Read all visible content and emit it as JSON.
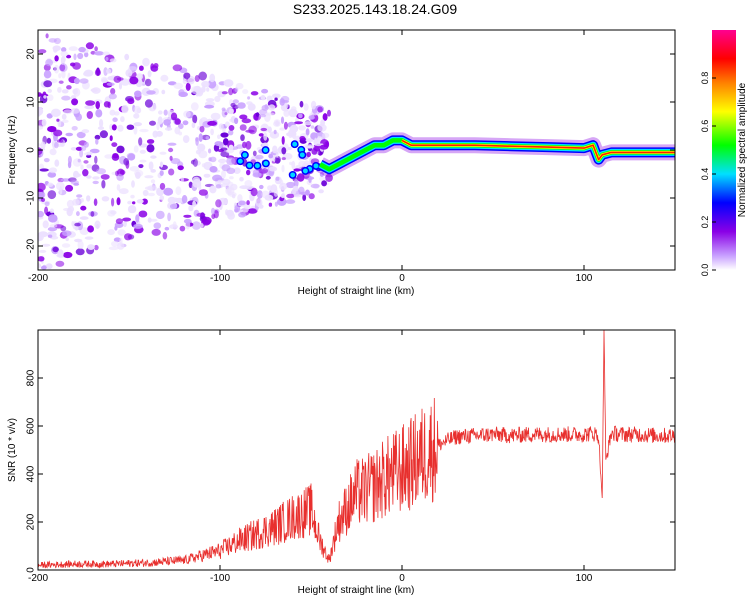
{
  "title": "S233.2025.143.18.24.G09",
  "colors": {
    "background": "#ffffff",
    "axis": "#000000",
    "snr_line": "#e8302e"
  },
  "chart_data": [
    {
      "type": "heatmap",
      "xlabel": "Height of straight line (km)",
      "ylabel": "Frequency (Hz)",
      "xlim": [
        -200,
        150
      ],
      "ylim": [
        -25,
        25
      ],
      "x_ticks": [
        -200,
        -100,
        0,
        100
      ],
      "y_ticks": [
        -20,
        -10,
        0,
        10,
        20
      ],
      "colorbar": {
        "label": "Normalized spectral amplitude",
        "range": [
          0,
          1
        ],
        "ticks": [
          0.0,
          0.2,
          0.4,
          0.6,
          0.8
        ],
        "colormap": [
          "#ffffff",
          "#c8a0ff",
          "#8a00e6",
          "#0000ff",
          "#00e0ff",
          "#00ff00",
          "#ffff00",
          "#ff8000",
          "#ff0000",
          "#ff0090"
        ]
      },
      "dominant_frequency_track": {
        "x": [
          -45,
          -40,
          -35,
          -30,
          -25,
          -20,
          -15,
          -10,
          -5,
          0,
          5,
          20,
          40,
          60,
          80,
          100,
          105,
          108,
          110,
          115,
          130,
          150
        ],
        "y": [
          -3,
          -4,
          -3,
          -2,
          -1,
          0,
          1,
          1,
          2,
          2,
          1,
          1,
          1,
          0.8,
          0.6,
          0.4,
          1,
          -2,
          -1,
          -0.5,
          -0.5,
          -0.5
        ]
      },
      "scatter_region": {
        "x_from": -200,
        "x_to": -40,
        "freq_spread": 25
      }
    },
    {
      "type": "line",
      "xlabel": "Height of straight line (km)",
      "ylabel": "SNR (10 * v/v)",
      "xlim": [
        -200,
        150
      ],
      "ylim": [
        0,
        1000
      ],
      "x_ticks": [
        -200,
        -100,
        0,
        100
      ],
      "y_ticks": [
        0,
        200,
        400,
        600,
        800
      ],
      "series": [
        {
          "x": [
            -200,
            -180,
            -160,
            -140,
            -120,
            -110,
            -100,
            -90,
            -80,
            -70,
            -60,
            -50,
            -45,
            -40,
            -35,
            -30,
            -25,
            -20,
            -15,
            -10,
            -5,
            0,
            5,
            10,
            15,
            20,
            25,
            30,
            40,
            50,
            60,
            70,
            80,
            90,
            100,
            105,
            108,
            110,
            111,
            112,
            115,
            120,
            130,
            140,
            150
          ],
          "y": [
            20,
            25,
            25,
            30,
            40,
            60,
            80,
            120,
            150,
            180,
            220,
            250,
            120,
            40,
            200,
            260,
            320,
            330,
            350,
            380,
            400,
            420,
            440,
            470,
            500,
            520,
            540,
            555,
            560,
            565,
            560,
            565,
            565,
            565,
            565,
            570,
            560,
            300,
            1000,
            460,
            570,
            565,
            565,
            560,
            560
          ]
        }
      ]
    }
  ]
}
